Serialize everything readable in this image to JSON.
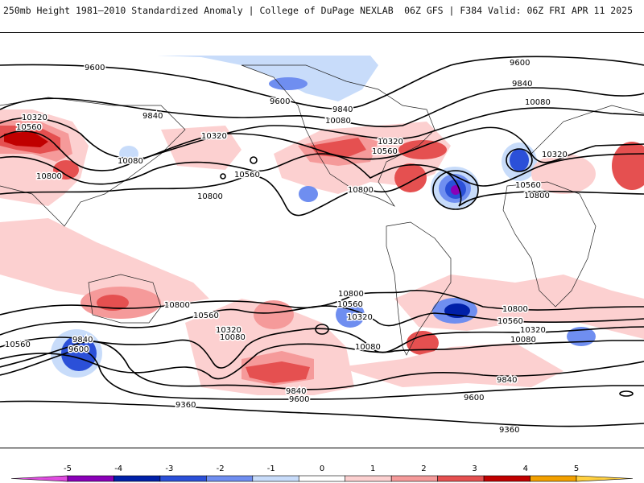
{
  "header": {
    "title_left": "250mb Height 1981–2010 Standardized Anomaly | College of DuPage NEXLAB",
    "title_right": "06Z GFS | F384 Valid: 06Z FRI APR 11 2025"
  },
  "colorbar": {
    "ticks": [
      "-5",
      "-4",
      "-3",
      "-2",
      "-1",
      "0",
      "1",
      "2",
      "3",
      "4",
      "5"
    ],
    "colors": [
      "#e04ce0",
      "#8a00b8",
      "#0020a8",
      "#2b50d8",
      "#6f8ef0",
      "#c8dcfa",
      "#ffffff",
      "#fcd0d0",
      "#f59a9a",
      "#e55050",
      "#c00000",
      "#f2a000",
      "#ffd040"
    ]
  },
  "contour_labels": {
    "v9360": "9360",
    "v9600": "9600",
    "v9840": "9840",
    "v10080": "10080",
    "v10320": "10320",
    "v10560": "10560",
    "v10800": "10800"
  }
}
